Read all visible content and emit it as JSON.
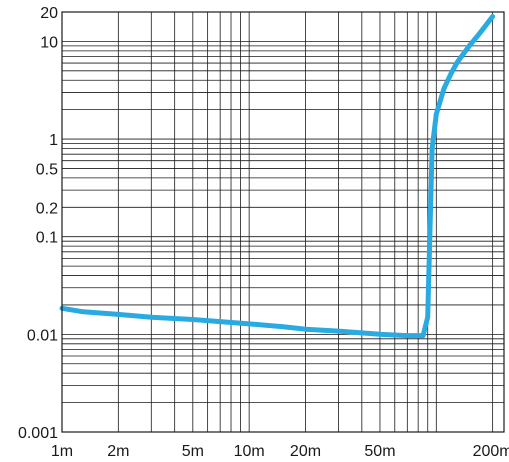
{
  "chart_data": {
    "type": "line",
    "title": "",
    "xlabel": "",
    "ylabel": "",
    "x_scale": "log",
    "y_scale": "log",
    "xlim": [
      0.001,
      0.23
    ],
    "ylim": [
      0.001,
      20
    ],
    "grid": true,
    "legend": "none",
    "x_ticks": [
      {
        "value": 0.001,
        "label": "1m"
      },
      {
        "value": 0.002,
        "label": "2m"
      },
      {
        "value": 0.005,
        "label": "5m"
      },
      {
        "value": 0.01,
        "label": "10m"
      },
      {
        "value": 0.02,
        "label": "20m"
      },
      {
        "value": 0.05,
        "label": "50m"
      },
      {
        "value": 0.2,
        "label": "200m"
      }
    ],
    "y_ticks": [
      {
        "value": 0.001,
        "label": "0.001"
      },
      {
        "value": 0.01,
        "label": "0.01"
      },
      {
        "value": 0.1,
        "label": "0.1"
      },
      {
        "value": 0.2,
        "label": "0.2"
      },
      {
        "value": 0.5,
        "label": "0.5"
      },
      {
        "value": 1,
        "label": "1"
      },
      {
        "value": 10,
        "label": "10"
      },
      {
        "value": 20,
        "label": "20"
      }
    ],
    "series": [
      {
        "color": "#29abe2",
        "x": [
          0.001,
          0.0013,
          0.002,
          0.003,
          0.005,
          0.007,
          0.01,
          0.015,
          0.02,
          0.03,
          0.05,
          0.07,
          0.085,
          0.09,
          0.095,
          0.1,
          0.11,
          0.12,
          0.13,
          0.15,
          0.17,
          0.2
        ],
        "y": [
          0.0185,
          0.017,
          0.016,
          0.015,
          0.0142,
          0.0135,
          0.0128,
          0.012,
          0.0113,
          0.0108,
          0.01,
          0.0097,
          0.0097,
          0.015,
          0.8,
          1.8,
          3.3,
          4.7,
          6.2,
          9,
          12,
          18
        ]
      }
    ]
  }
}
